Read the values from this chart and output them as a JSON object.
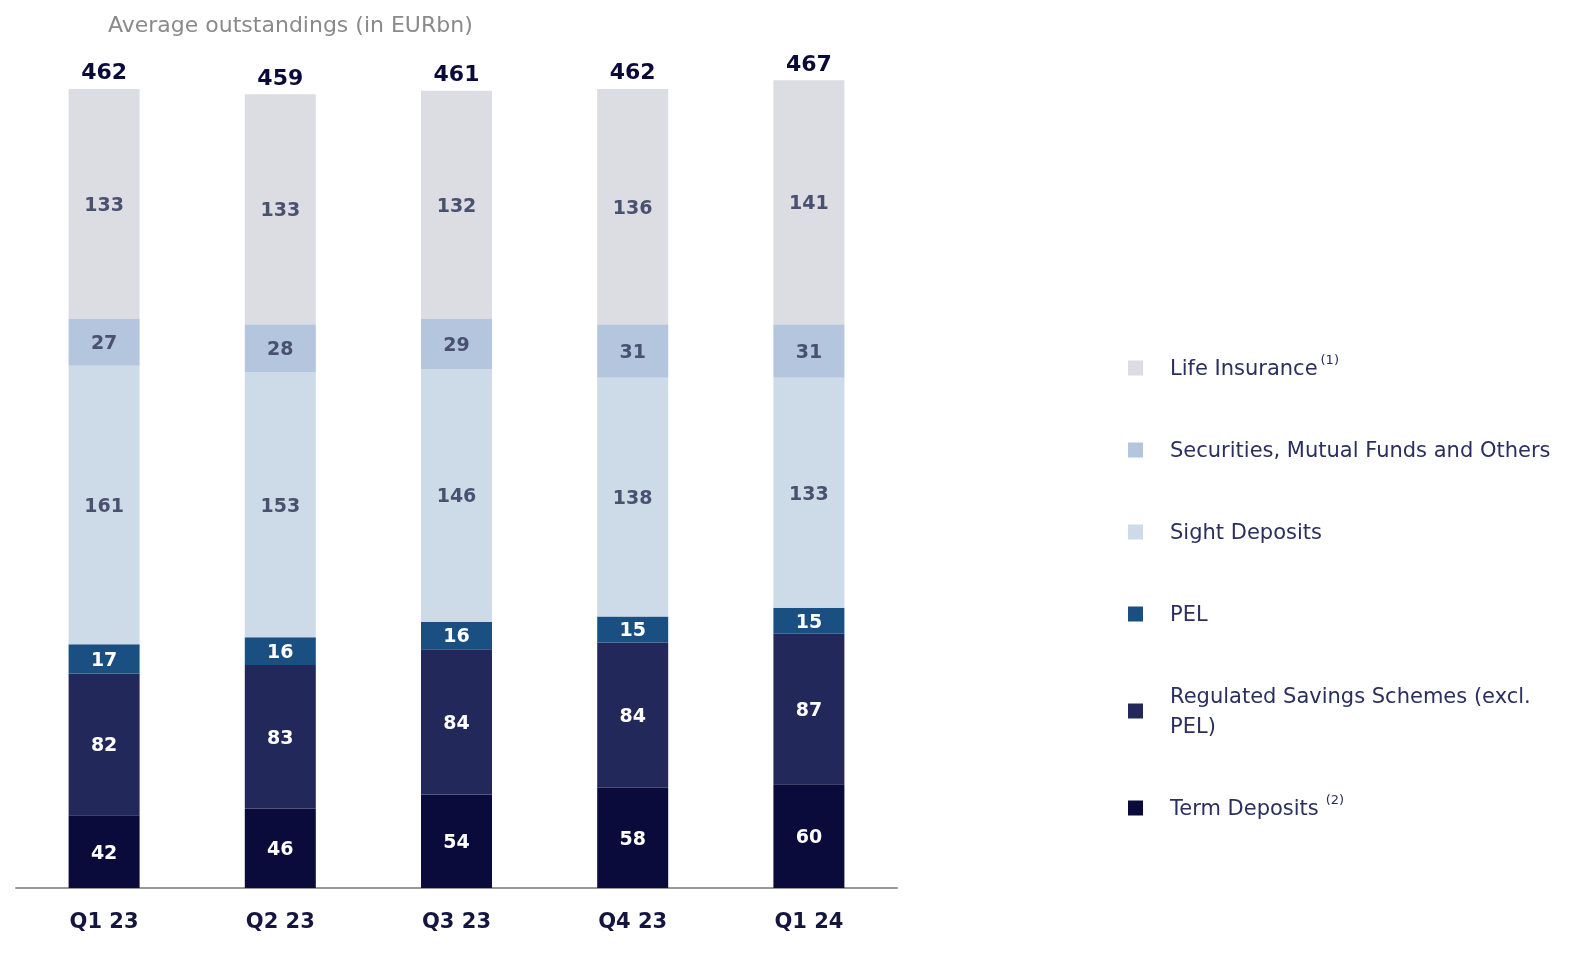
{
  "chart_data": {
    "type": "bar",
    "title": "Average outstandings (in EURbn)",
    "stacked": true,
    "data_labels": true,
    "legend": "right",
    "categories": [
      "Q1 23",
      "Q2 23",
      "Q3 23",
      "Q4 23",
      "Q1 24"
    ],
    "series": [
      {
        "name": "Term Deposits$^{(2)}$",
        "color": "#0b0b3b",
        "values": [
          42,
          46,
          54,
          58,
          60
        ]
      },
      {
        "name": "Regulated Savings Schemes (excl. PEL)",
        "color": "#23285a",
        "values": [
          82,
          83,
          84,
          84,
          87
        ]
      },
      {
        "name": "PEL",
        "color": "#1a4f82",
        "values": [
          17,
          16,
          16,
          15,
          15
        ]
      },
      {
        "name": "Sight Deposits",
        "color": "#cddbe8",
        "values": [
          161,
          153,
          146,
          138,
          133
        ]
      },
      {
        "name": "Securities, Mutual Funds and Others",
        "color": "#b3c6dd",
        "values": [
          27,
          28,
          29,
          31,
          31
        ]
      },
      {
        "name": "Life Insurance$^{(1)}$",
        "color": "#dcdde2",
        "values": [
          133,
          133,
          132,
          136,
          141
        ]
      }
    ],
    "totals": [
      "462",
      "459",
      "461",
      "462",
      "467"
    ]
  }
}
